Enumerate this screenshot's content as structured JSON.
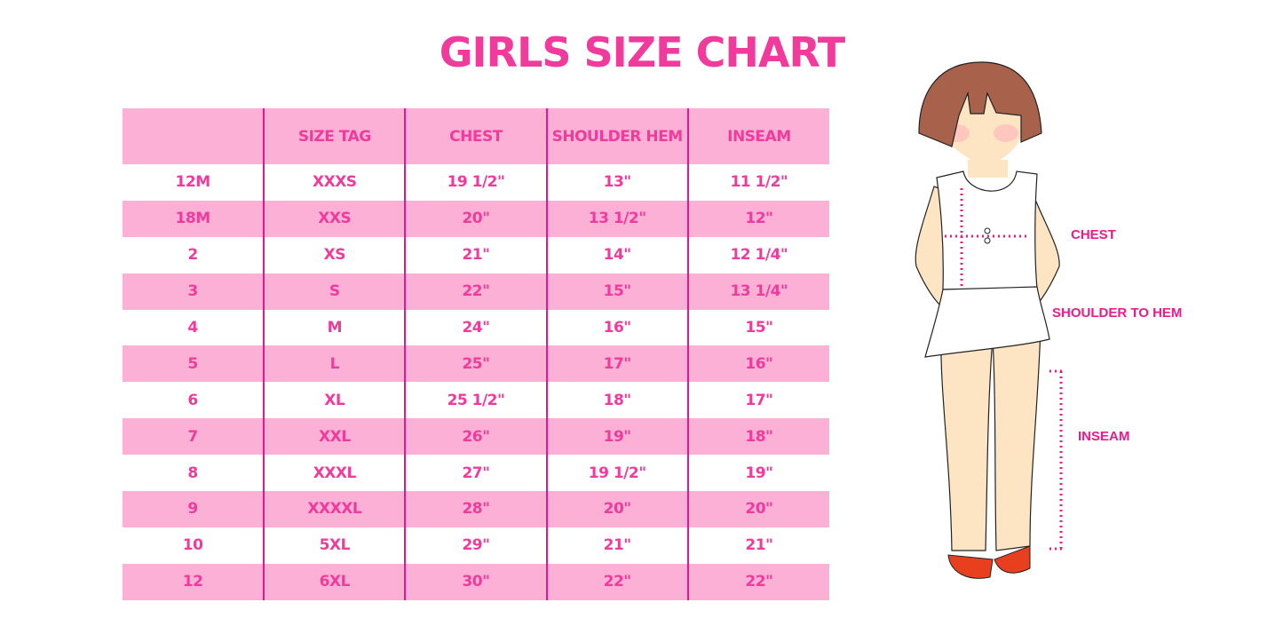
{
  "title": "GIRLS SIZE CHART",
  "table": {
    "headers": [
      "",
      "SIZE TAG",
      "CHEST",
      "SHOULDER HEM",
      "INSEAM"
    ],
    "rows": [
      [
        "12M",
        "XXXS",
        "19 1/2\"",
        "13\"",
        "11 1/2\""
      ],
      [
        "18M",
        "XXS",
        "20\"",
        "13 1/2\"",
        "12\""
      ],
      [
        "2",
        "XS",
        "21\"",
        "14\"",
        "12 1/4\""
      ],
      [
        "3",
        "S",
        "22\"",
        "15\"",
        "13 1/4\""
      ],
      [
        "4",
        "M",
        "24\"",
        "16\"",
        "15\""
      ],
      [
        "5",
        "L",
        "25\"",
        "17\"",
        "16\""
      ],
      [
        "6",
        "XL",
        "25 1/2\"",
        "18\"",
        "17\""
      ],
      [
        "7",
        "XXL",
        "26\"",
        "19\"",
        "18\""
      ],
      [
        "8",
        "XXXL",
        "27\"",
        "19 1/2\"",
        "19\""
      ],
      [
        "9",
        "XXXXL",
        "28\"",
        "20\"",
        "20\""
      ],
      [
        "10",
        "5XL",
        "29\"",
        "21\"",
        "21\""
      ],
      [
        "12",
        "6XL",
        "30\"",
        "22\"",
        "22\""
      ]
    ]
  },
  "figure": {
    "labels": {
      "chest": "CHEST",
      "shoulder_to_hem": "SHOULDER TO HEM",
      "inseam": "INSEAM"
    }
  },
  "colors": {
    "accent": "#f03a9c",
    "row_pink": "#fcb0d6",
    "divider": "#e3188e"
  }
}
